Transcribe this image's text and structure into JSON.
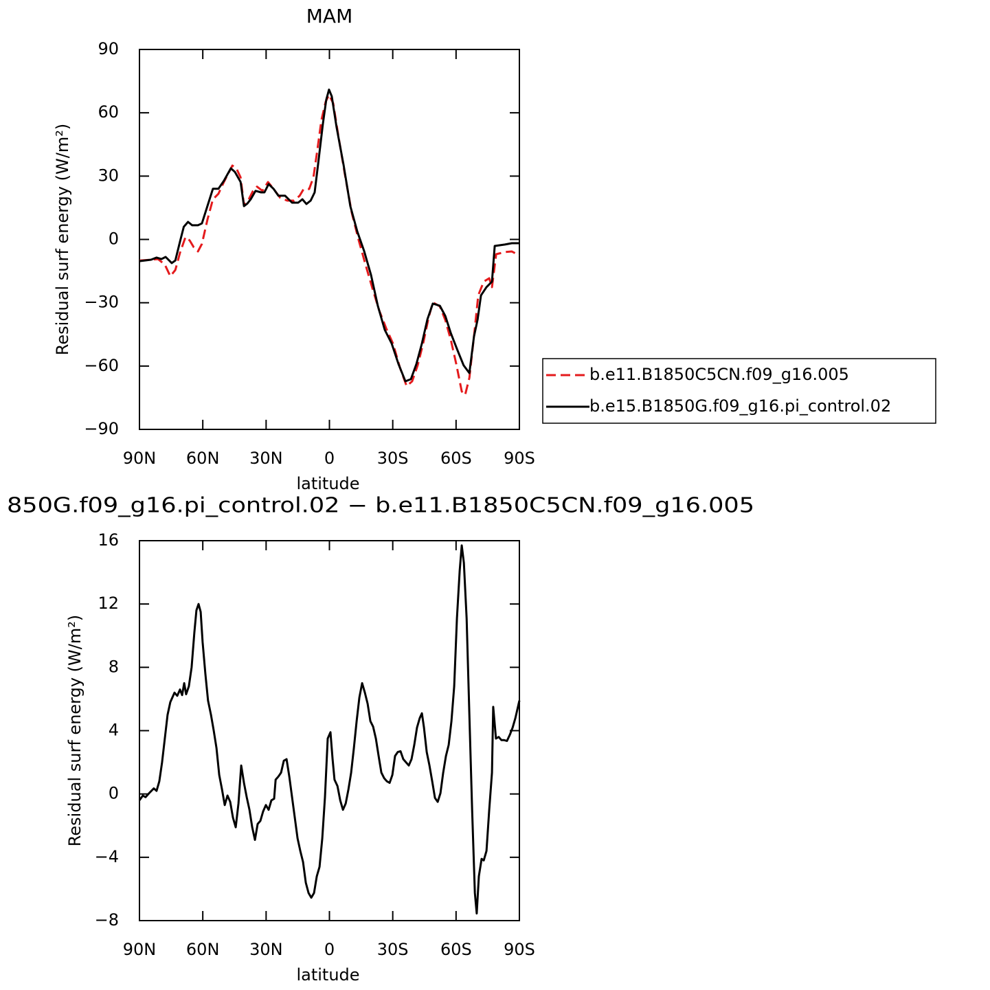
{
  "chart_data": [
    {
      "type": "line",
      "title": "MAM",
      "xlabel": "latitude",
      "ylabel": "Residual surf energy (W/m²)",
      "xlim": [
        90,
        -90
      ],
      "xticks": [
        {
          "value": 90,
          "label": "90N"
        },
        {
          "value": 60,
          "label": "60N"
        },
        {
          "value": 30,
          "label": "30N"
        },
        0,
        {
          "value": -30,
          "label": "30S"
        },
        {
          "value": -60,
          "label": "60S"
        },
        {
          "value": -90,
          "label": "90S"
        }
      ],
      "ylim": [
        -90,
        90
      ],
      "yticks": [
        {
          "value": -90,
          "label": "−90"
        },
        {
          "value": -60,
          "label": "−60"
        },
        {
          "value": -30,
          "label": "−30"
        },
        0,
        30,
        60,
        90
      ],
      "legend": "right",
      "series": [
        {
          "name": "b.e11.B1850C5CN.f09_g16.005",
          "color": "#e41a1c",
          "linestyle": "dashed",
          "x": [
            90,
            84.5,
            81.2,
            78,
            75.4,
            73,
            70.8,
            68.2,
            66.2,
            64.3,
            62.3,
            60.4,
            57.8,
            55.2,
            52.6,
            50,
            46,
            44.1,
            42.1,
            40.5,
            38.2,
            36.2,
            34.3,
            31.7,
            29.1,
            26.5,
            23.3,
            20,
            16.8,
            14.1,
            12.2,
            9.6,
            7.6,
            5.7,
            3.8,
            1.8,
            0.2,
            -1.8,
            -4.1,
            -7.4,
            -10.6,
            -13.9,
            -17.1,
            -20.4,
            -23.6,
            -26.9,
            -30.1,
            -33.4,
            -36.6,
            -39.2,
            -41.8,
            -44.4,
            -47,
            -49,
            -52.3,
            -54.9,
            -57.5,
            -60.1,
            -62.7,
            -64.3,
            -66.3,
            -68.5,
            -70.5,
            -73.1,
            -75.7,
            -77,
            -79,
            -83.2,
            -86.4,
            -90
          ],
          "values": [
            -10,
            -9.6,
            -9.3,
            -11.9,
            -17.4,
            -14.5,
            -6.3,
            1.1,
            -0.5,
            -3.7,
            -5.7,
            -2.1,
            9.3,
            19,
            21.6,
            27.2,
            35,
            33.7,
            29.4,
            16.4,
            19,
            23,
            25,
            23,
            27.2,
            24,
            19.7,
            18.4,
            18.4,
            20.7,
            23.9,
            23.9,
            29.4,
            42.5,
            56.5,
            65.2,
            68.5,
            64.5,
            49.9,
            30.4,
            12.5,
            -0.5,
            -11.9,
            -23.3,
            -33.7,
            -42.1,
            -49.3,
            -60.7,
            -69.5,
            -67.2,
            -59.7,
            -49.3,
            -37,
            -29.8,
            -31.7,
            -38.2,
            -47.6,
            -59,
            -72,
            -73.7,
            -65.6,
            -46,
            -26.5,
            -20,
            -18.4,
            -22.6,
            -7,
            -6,
            -5.7,
            -7.6
          ]
        },
        {
          "name": "b.e15.B1850G.f09_g16.pi_control.02",
          "color": "#000000",
          "linestyle": "solid",
          "x": [
            90,
            84.5,
            81.9,
            79.6,
            77.6,
            74.7,
            73,
            70.8,
            69,
            67,
            65,
            62.3,
            60.4,
            57.8,
            55.2,
            52.6,
            50,
            46.7,
            44.8,
            42.1,
            40.5,
            38.9,
            37.3,
            35,
            32.4,
            30.8,
            28.8,
            26.5,
            24.2,
            21,
            17.7,
            14.8,
            12.8,
            10.9,
            8.9,
            7,
            5,
            3.1,
            1.5,
            0.2,
            -1.1,
            -3.4,
            -6.7,
            -9.9,
            -13.2,
            -16.4,
            -19.7,
            -22.9,
            -26.2,
            -29.5,
            -32.7,
            -36,
            -38.6,
            -41.2,
            -43.8,
            -46.4,
            -49,
            -52.3,
            -54.9,
            -57.5,
            -60.7,
            -63.6,
            -66.3,
            -68.5,
            -70.2,
            -71.8,
            -74.4,
            -77,
            -78.3,
            -83.2,
            -86.4,
            -90
          ],
          "values": [
            -10.3,
            -9.6,
            -8.6,
            -9.3,
            -8.3,
            -11.2,
            -10,
            -1,
            6,
            8.3,
            6.7,
            6.7,
            7.6,
            15.8,
            24,
            24,
            27.8,
            33.7,
            32,
            27.2,
            15.8,
            17,
            19,
            23,
            22.3,
            22.3,
            26.2,
            24,
            20.7,
            20.7,
            17.4,
            17.4,
            19,
            16.8,
            18.4,
            22.3,
            38.6,
            54.8,
            66.2,
            71,
            67.8,
            53.2,
            35.3,
            15.8,
            3.7,
            -5.4,
            -16.8,
            -31.4,
            -42.8,
            -49.3,
            -59,
            -67.2,
            -66.2,
            -59,
            -49.3,
            -37.9,
            -30.4,
            -31.4,
            -36.3,
            -44.4,
            -52.6,
            -59.7,
            -63.3,
            -46,
            -37.9,
            -26.5,
            -22.6,
            -20,
            -3.1,
            -2.4,
            -1.8,
            -1.8
          ]
        }
      ]
    },
    {
      "type": "line",
      "title": "850G.f09_g16.pi_control.02 − b.e11.B1850C5CN.f09_g16.005",
      "xlabel": "latitude",
      "ylabel": "Residual surf energy (W/m²)",
      "xlim": [
        90,
        -90
      ],
      "xticks": [
        {
          "value": 90,
          "label": "90N"
        },
        {
          "value": 60,
          "label": "60N"
        },
        {
          "value": 30,
          "label": "30N"
        },
        0,
        {
          "value": -30,
          "label": "30S"
        },
        {
          "value": -60,
          "label": "60S"
        },
        {
          "value": -90,
          "label": "90S"
        }
      ],
      "ylim": [
        -8,
        16
      ],
      "yticks": [
        {
          "value": -8,
          "label": "−8"
        },
        {
          "value": -4,
          "label": "−4"
        },
        0,
        4,
        8,
        12,
        16
      ],
      "series": [
        {
          "color": "#000000",
          "linestyle": "solid",
          "x": [
            90,
            88.4,
            87.1,
            85.1,
            83.2,
            81.9,
            80.6,
            79.3,
            78,
            76.7,
            75.4,
            73.4,
            72.1,
            70.8,
            69.8,
            68.8,
            67.9,
            66.6,
            65.3,
            64,
            63,
            62,
            61,
            60.1,
            58.8,
            57.5,
            56.1,
            54.8,
            53.5,
            52.2,
            50.9,
            49.6,
            48.3,
            47,
            45.7,
            44.4,
            43.1,
            41.8,
            40.5,
            39.2,
            37.9,
            36.6,
            35.3,
            34,
            32.7,
            31.4,
            30.1,
            28.8,
            27.5,
            26.2,
            25.5,
            24.2,
            22.9,
            21.6,
            20.3,
            19,
            17.7,
            16.4,
            15.1,
            13.8,
            12.5,
            11.2,
            9.9,
            8.6,
            7.3,
            6,
            4.7,
            3.4,
            2.1,
            0.8,
            -0.5,
            -1.5,
            -2.4,
            -3.8,
            -5.1,
            -6.4,
            -7.7,
            -9,
            -10.3,
            -11.6,
            -12.9,
            -14.2,
            -15.5,
            -16.8,
            -18.1,
            -19.4,
            -20.7,
            -22,
            -23.3,
            -24.6,
            -25.9,
            -27.2,
            -28.5,
            -29.8,
            -31.1,
            -32.4,
            -33.7,
            -35,
            -36.3,
            -37.6,
            -38.9,
            -40.2,
            -41.5,
            -42.8,
            -43.8,
            -44.8,
            -46.1,
            -47.4,
            -48.7,
            -50,
            -51.3,
            -52.6,
            -53.9,
            -55.2,
            -56.5,
            -57.8,
            -59.1,
            -60.4,
            -61.7,
            -62.7,
            -63.7,
            -65,
            -66.3,
            -67.6,
            -68.9,
            -69.8,
            -70.8,
            -72.1,
            -73.1,
            -74.4,
            -75.7,
            -77,
            -77.6,
            -78.9,
            -80.2,
            -81.5,
            -82.8,
            -84.1,
            -85.5,
            -86.8,
            -88.1,
            -90
          ],
          "values": [
            -0.4,
            -0.1,
            -0.2,
            0.1,
            0.35,
            0.2,
            0.8,
            2,
            3.5,
            5,
            5.8,
            6.4,
            6.2,
            6.6,
            6.25,
            7,
            6.3,
            6.8,
            8,
            10.2,
            11.6,
            12,
            11.5,
            9.6,
            7.6,
            5.9,
            5,
            4,
            2.9,
            1.2,
            0.3,
            -0.7,
            -0.1,
            -0.5,
            -1.5,
            -2.1,
            -0.6,
            1.8,
            0.7,
            -0.2,
            -1,
            -2.1,
            -2.9,
            -1.9,
            -1.7,
            -1.1,
            -0.7,
            -1,
            -0.4,
            -0.3,
            0.9,
            1.1,
            1.35,
            2.1,
            2.2,
            1.1,
            -0.2,
            -1.5,
            -2.8,
            -3.6,
            -4.3,
            -5.6,
            -6.25,
            -6.55,
            -6.25,
            -5.2,
            -4.6,
            -2.8,
            -0.2,
            3.5,
            3.9,
            2.2,
            0.9,
            0.5,
            -0.4,
            -1,
            -0.6,
            0.3,
            1.35,
            2.9,
            4.6,
            6.1,
            7,
            6.4,
            5.7,
            4.6,
            4.25,
            3.5,
            2.4,
            1.35,
            1,
            0.8,
            0.7,
            1.2,
            2.4,
            2.65,
            2.7,
            2.2,
            2,
            1.8,
            2.2,
            3.1,
            4.2,
            4.8,
            5.1,
            4.2,
            2.65,
            1.8,
            0.8,
            -0.25,
            -0.5,
            0.05,
            1.35,
            2.4,
            3.1,
            4.6,
            6.8,
            11.1,
            14.1,
            15.7,
            14.6,
            11.1,
            5,
            -1,
            -6.25,
            -7.55,
            -5.2,
            -4.1,
            -4.2,
            -3.6,
            -1,
            1.35,
            5.5,
            3.5,
            3.6,
            3.4,
            3.4,
            3.35,
            3.75,
            4.2,
            4.8,
            5.9
          ]
        }
      ]
    }
  ]
}
